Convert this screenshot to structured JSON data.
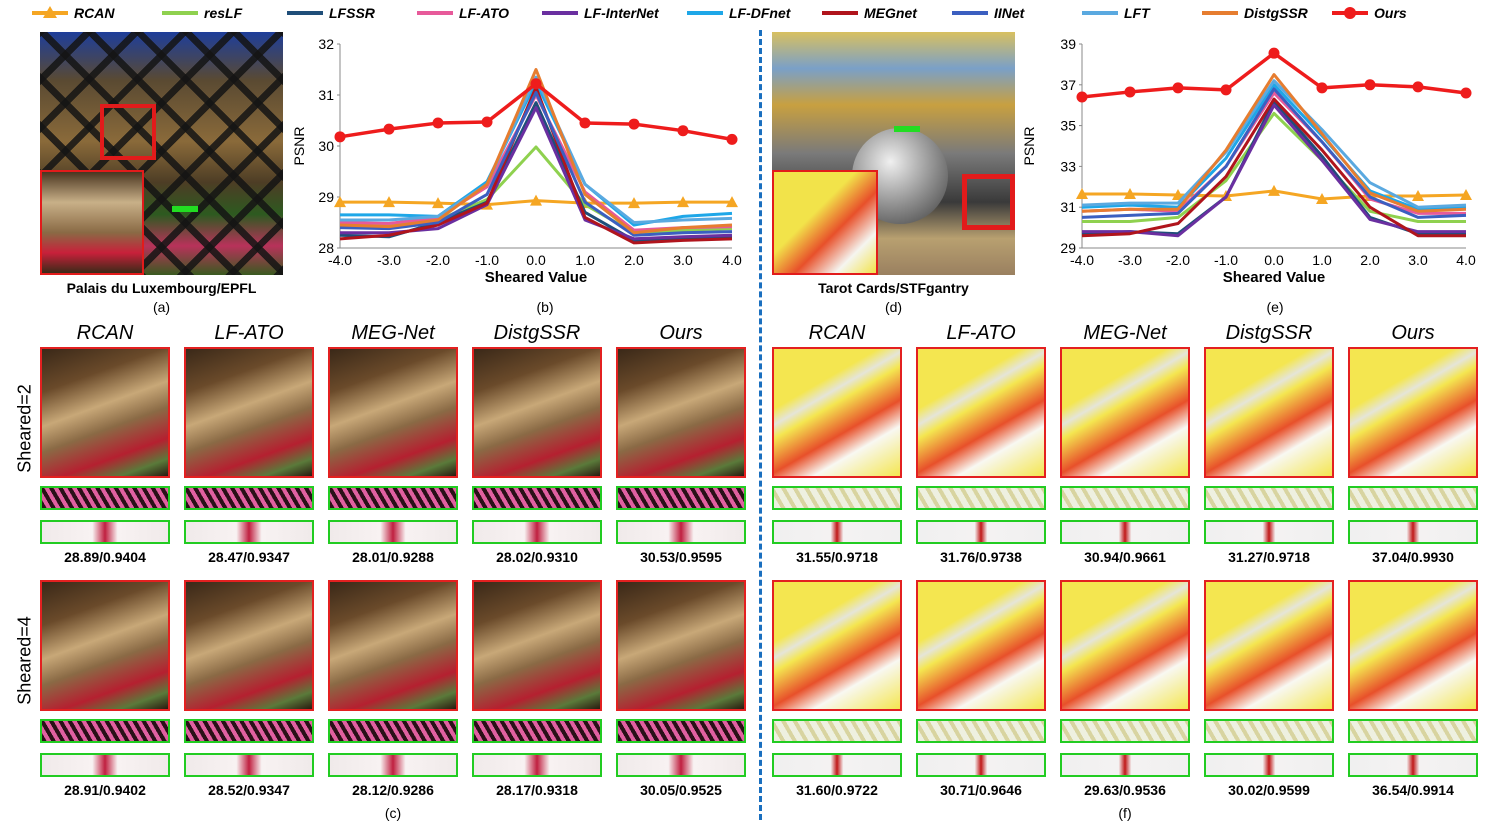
{
  "legend": [
    {
      "name": "RCAN",
      "color": "#f5a623",
      "marker": "triangle"
    },
    {
      "name": "resLF",
      "color": "#8fd14f",
      "marker": "none"
    },
    {
      "name": "LFSSR",
      "color": "#1f4e79",
      "marker": "none"
    },
    {
      "name": "LF-ATO",
      "color": "#e75a9a",
      "marker": "none"
    },
    {
      "name": "LF-InterNet",
      "color": "#6a2fa0",
      "marker": "none"
    },
    {
      "name": "LF-DFnet",
      "color": "#1ea7e8",
      "marker": "none"
    },
    {
      "name": "MEGnet",
      "color": "#b0141c",
      "marker": "none"
    },
    {
      "name": "IINet",
      "color": "#3b5fc0",
      "marker": "none"
    },
    {
      "name": "LFT",
      "color": "#5aa9e0",
      "marker": "none"
    },
    {
      "name": "DistgSSR",
      "color": "#e67d30",
      "marker": "none"
    },
    {
      "name": "Ours",
      "color": "#ee1c1c",
      "marker": "circle"
    }
  ],
  "captions": {
    "a_title": "Palais du Luxembourg/EPFL",
    "a_tag": "(a)",
    "b_tag": "(b)",
    "c_tag": "(c)",
    "d_title": "Tarot Cards/STFgantry",
    "d_tag": "(d)",
    "e_tag": "(e)",
    "f_tag": "(f)"
  },
  "method_headers": [
    "RCAN",
    "LF-ATO",
    "MEG-Net",
    "DistgSSR",
    "Ours"
  ],
  "row_labels": [
    "Sheared=2",
    "Sheared=4"
  ],
  "metrics_left": {
    "row1": [
      "28.89/0.9404",
      "28.47/0.9347",
      "28.01/0.9288",
      "28.02/0.9310",
      "30.53/0.9595"
    ],
    "row2": [
      "28.91/0.9402",
      "28.52/0.9347",
      "28.12/0.9286",
      "28.17/0.9318",
      "30.05/0.9525"
    ]
  },
  "metrics_right": {
    "row1": [
      "31.55/0.9718",
      "31.76/0.9738",
      "30.94/0.9661",
      "31.27/0.9718",
      "37.04/0.9930"
    ],
    "row2": [
      "31.60/0.9722",
      "30.71/0.9646",
      "29.63/0.9536",
      "30.02/0.9599",
      "36.54/0.9914"
    ]
  },
  "chart_data": [
    {
      "type": "line",
      "id": "b",
      "xlabel": "Sheared Value",
      "ylabel": "PSNR",
      "x": [
        -4.0,
        -3.0,
        -2.0,
        -1.0,
        0.0,
        1.0,
        2.0,
        3.0,
        4.0
      ],
      "x_tick_labels": [
        "-4.0",
        "-3.0",
        "-2.0",
        "-1.0",
        "0.0",
        "1.0",
        "2.0",
        "3.0",
        "4.0"
      ],
      "ylim": [
        28,
        32
      ],
      "y_ticks": [
        28,
        29,
        30,
        31,
        32
      ],
      "series": [
        {
          "name": "RCAN",
          "values": [
            28.9,
            28.9,
            28.88,
            28.85,
            28.93,
            28.88,
            28.88,
            28.9,
            28.9
          ]
        },
        {
          "name": "resLF",
          "values": [
            28.45,
            28.45,
            28.55,
            28.95,
            29.98,
            28.85,
            28.3,
            28.35,
            28.38
          ]
        },
        {
          "name": "LFSSR",
          "values": [
            28.25,
            28.22,
            28.5,
            28.9,
            30.85,
            28.7,
            28.15,
            28.2,
            28.2
          ]
        },
        {
          "name": "LF-ATO",
          "values": [
            28.5,
            28.48,
            28.6,
            29.2,
            31.0,
            29.1,
            28.35,
            28.4,
            28.42
          ]
        },
        {
          "name": "LF-InterNet",
          "values": [
            28.3,
            28.3,
            28.38,
            28.85,
            30.75,
            28.55,
            28.18,
            28.22,
            28.25
          ]
        },
        {
          "name": "LF-DFnet",
          "values": [
            28.65,
            28.65,
            28.62,
            29.3,
            31.25,
            29.25,
            28.45,
            28.62,
            28.68
          ]
        },
        {
          "name": "MEGnet",
          "values": [
            28.18,
            28.25,
            28.45,
            28.88,
            31.15,
            28.6,
            28.1,
            28.15,
            28.18
          ]
        },
        {
          "name": "IINet",
          "values": [
            28.4,
            28.38,
            28.5,
            29.05,
            31.05,
            28.9,
            28.25,
            28.3,
            28.32
          ]
        },
        {
          "name": "LFT",
          "values": [
            28.55,
            28.55,
            28.62,
            29.25,
            31.35,
            29.25,
            28.5,
            28.55,
            28.58
          ]
        },
        {
          "name": "DistgSSR",
          "values": [
            28.45,
            28.42,
            28.55,
            29.25,
            31.5,
            29.05,
            28.3,
            28.4,
            28.45
          ]
        },
        {
          "name": "Ours",
          "values": [
            30.18,
            30.33,
            30.45,
            30.47,
            31.22,
            30.45,
            30.43,
            30.3,
            30.13
          ]
        }
      ]
    },
    {
      "type": "line",
      "id": "e",
      "xlabel": "Sheared Value",
      "ylabel": "PSNR",
      "x": [
        -4.0,
        -3.0,
        -2.0,
        -1.0,
        0.0,
        1.0,
        2.0,
        3.0,
        4.0
      ],
      "x_tick_labels": [
        "-4.0",
        "-3.0",
        "-2.0",
        "-1.0",
        "0.0",
        "1.0",
        "2.0",
        "3.0",
        "4.0"
      ],
      "ylim": [
        29,
        39
      ],
      "y_ticks": [
        29,
        31,
        33,
        35,
        37,
        39
      ],
      "series": [
        {
          "name": "RCAN",
          "values": [
            31.65,
            31.65,
            31.6,
            31.55,
            31.8,
            31.4,
            31.55,
            31.55,
            31.6
          ]
        },
        {
          "name": "resLF",
          "values": [
            30.3,
            30.3,
            30.5,
            32.3,
            35.6,
            33.3,
            30.8,
            30.3,
            30.3
          ]
        },
        {
          "name": "LFSSR",
          "values": [
            29.7,
            29.8,
            29.7,
            31.5,
            36.2,
            33.5,
            30.5,
            29.7,
            29.7
          ]
        },
        {
          "name": "LF-ATO",
          "values": [
            30.8,
            30.9,
            30.8,
            33.0,
            36.6,
            34.2,
            31.4,
            30.7,
            30.7
          ]
        },
        {
          "name": "LF-InterNet",
          "values": [
            29.8,
            29.8,
            29.6,
            31.5,
            36.0,
            33.3,
            30.4,
            29.8,
            29.8
          ]
        },
        {
          "name": "LF-DFnet",
          "values": [
            31.0,
            31.1,
            31.0,
            33.4,
            37.0,
            34.5,
            31.8,
            30.9,
            31.0
          ]
        },
        {
          "name": "MEGnet",
          "values": [
            29.6,
            29.7,
            30.2,
            32.5,
            36.3,
            33.8,
            31.0,
            29.6,
            29.6
          ]
        },
        {
          "name": "IINet",
          "values": [
            30.5,
            30.6,
            30.7,
            33.0,
            36.8,
            34.2,
            31.5,
            30.5,
            30.6
          ]
        },
        {
          "name": "LFT",
          "values": [
            31.1,
            31.2,
            31.2,
            33.7,
            37.2,
            34.8,
            32.2,
            31.0,
            31.1
          ]
        },
        {
          "name": "DistgSSR",
          "values": [
            30.8,
            30.9,
            30.9,
            33.8,
            37.5,
            34.6,
            31.7,
            30.8,
            30.9
          ]
        },
        {
          "name": "Ours",
          "values": [
            36.4,
            36.65,
            36.85,
            36.75,
            38.55,
            36.85,
            37.0,
            36.9,
            36.6
          ]
        }
      ]
    }
  ]
}
